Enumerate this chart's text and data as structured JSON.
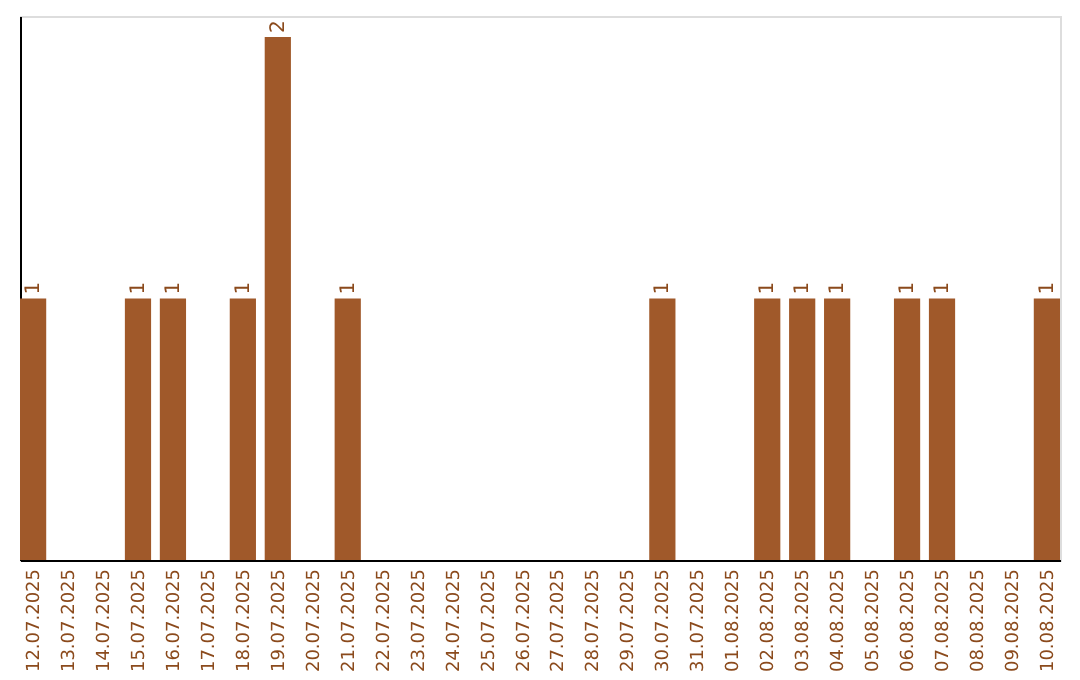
{
  "chart_data": {
    "type": "bar",
    "categories": [
      "12.07.2025",
      "13.07.2025",
      "14.07.2025",
      "15.07.2025",
      "16.07.2025",
      "17.07.2025",
      "18.07.2025",
      "19.07.2025",
      "20.07.2025",
      "21.07.2025",
      "22.07.2025",
      "23.07.2025",
      "24.07.2025",
      "25.07.2025",
      "26.07.2025",
      "27.07.2025",
      "28.07.2025",
      "29.07.2025",
      "30.07.2025",
      "31.07.2025",
      "01.08.2025",
      "02.08.2025",
      "03.08.2025",
      "04.08.2025",
      "05.08.2025",
      "06.08.2025",
      "07.08.2025",
      "08.08.2025",
      "09.08.2025",
      "10.08.2025"
    ],
    "values": [
      1,
      0,
      0,
      1,
      1,
      0,
      1,
      2,
      0,
      1,
      0,
      0,
      0,
      0,
      0,
      0,
      0,
      0,
      1,
      0,
      0,
      1,
      1,
      1,
      0,
      1,
      1,
      0,
      0,
      1
    ],
    "value_labels": [
      "1",
      null,
      null,
      "1",
      "1",
      null,
      "1",
      "2",
      null,
      "1",
      null,
      null,
      null,
      null,
      null,
      null,
      null,
      null,
      "1",
      null,
      null,
      "1",
      "1",
      "1",
      null,
      "1",
      "1",
      null,
      null,
      "1"
    ],
    "color": "#a0592a",
    "ylim": [
      0,
      2.08
    ],
    "tick_labels": "x",
    "grid": false
  }
}
